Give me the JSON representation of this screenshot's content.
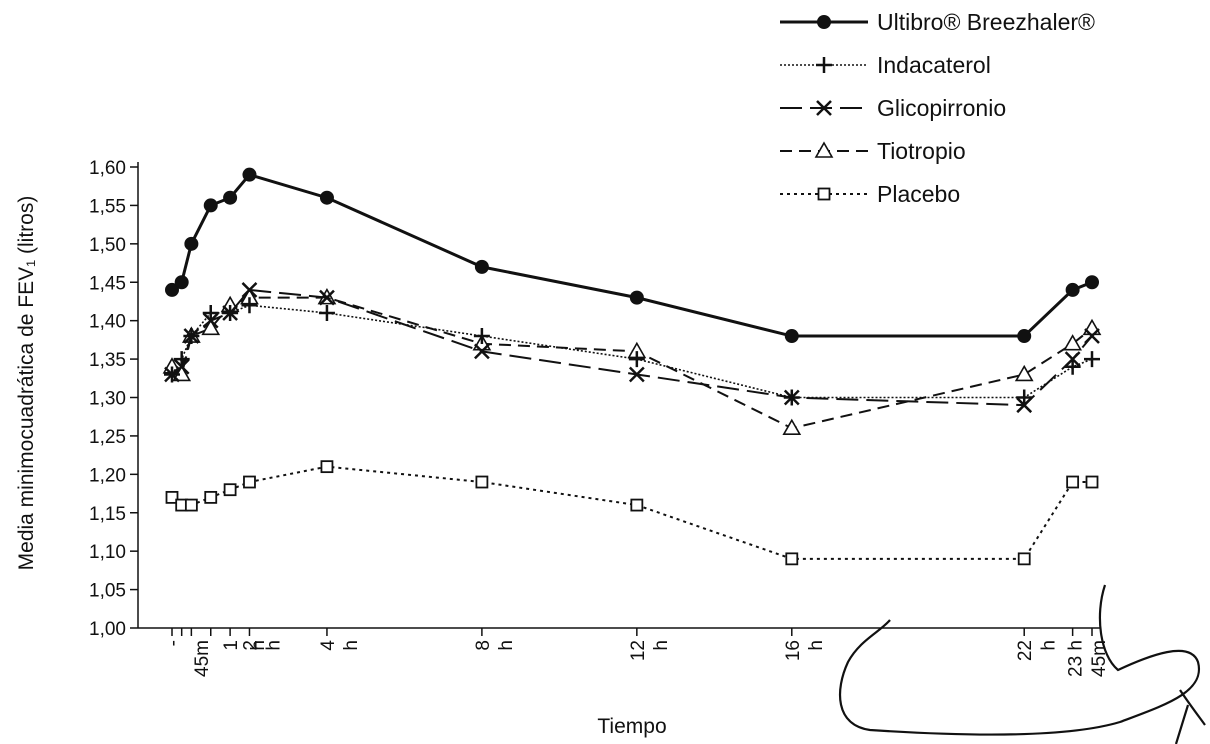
{
  "chart_data": {
    "type": "line",
    "xlabel": "Tiempo",
    "ylabel": "Media minimocuadrática de FEV₁ (litros)",
    "ylim": [
      1.0,
      1.6
    ],
    "yticks": [
      "1,00",
      "1,05",
      "1,10",
      "1,15",
      "1,20",
      "1,25",
      "1,30",
      "1,35",
      "1,40",
      "1,45",
      "1,50",
      "1,55",
      "1,60"
    ],
    "x_hours": [
      0,
      0.25,
      0.5,
      1,
      1.5,
      2,
      4,
      8,
      12,
      16,
      22,
      23.25,
      23.75
    ],
    "xticks": [
      {
        "hour": 0,
        "label": "-"
      },
      {
        "hour": 0.75,
        "label": "45m"
      },
      {
        "hour": 1.5,
        "label": "1"
      },
      {
        "hour": 2.2,
        "label": "h"
      },
      {
        "hour": 2.0,
        "label": "2"
      },
      {
        "hour": 2.6,
        "label": "h"
      },
      {
        "hour": 4,
        "label": "4"
      },
      {
        "hour": 4.6,
        "label": "h"
      },
      {
        "hour": 8,
        "label": "8"
      },
      {
        "hour": 8.6,
        "label": "h"
      },
      {
        "hour": 12,
        "label": "12"
      },
      {
        "hour": 12.6,
        "label": "h"
      },
      {
        "hour": 16,
        "label": "16"
      },
      {
        "hour": 16.6,
        "label": "h"
      },
      {
        "hour": 22,
        "label": "22"
      },
      {
        "hour": 22.6,
        "label": "h"
      },
      {
        "hour": 23.3,
        "label": "23 h"
      },
      {
        "hour": 23.9,
        "label": "45m"
      }
    ],
    "legend_position": "top-right",
    "series": [
      {
        "name": "Ultibro® Breezhaler®",
        "marker": "filled-circle",
        "dash": "solid",
        "stroke_width": 3,
        "values": [
          1.44,
          1.45,
          1.5,
          1.55,
          1.56,
          1.59,
          1.56,
          1.47,
          1.43,
          1.38,
          1.38,
          1.44,
          1.45
        ]
      },
      {
        "name": "Indacaterol",
        "marker": "plus",
        "dash": "fine-dot",
        "stroke_width": 1.6,
        "values": [
          1.33,
          1.35,
          1.38,
          1.41,
          1.41,
          1.42,
          1.41,
          1.38,
          1.35,
          1.3,
          1.3,
          1.34,
          1.35
        ]
      },
      {
        "name": "Glicopirronio",
        "marker": "x",
        "dash": "long-dash",
        "stroke_width": 2,
        "values": [
          1.33,
          1.34,
          1.38,
          1.4,
          1.41,
          1.44,
          1.43,
          1.36,
          1.33,
          1.3,
          1.29,
          1.35,
          1.38
        ]
      },
      {
        "name": "Tiotropio",
        "marker": "open-triangle",
        "dash": "dash",
        "stroke_width": 2,
        "values": [
          1.34,
          1.33,
          1.38,
          1.39,
          1.42,
          1.43,
          1.43,
          1.37,
          1.36,
          1.26,
          1.33,
          1.37,
          1.39
        ]
      },
      {
        "name": "Placebo",
        "marker": "open-square",
        "dash": "dot",
        "stroke_width": 2,
        "values": [
          1.17,
          1.16,
          1.16,
          1.17,
          1.18,
          1.19,
          1.21,
          1.19,
          1.16,
          1.09,
          1.09,
          1.19,
          1.19
        ]
      }
    ]
  }
}
